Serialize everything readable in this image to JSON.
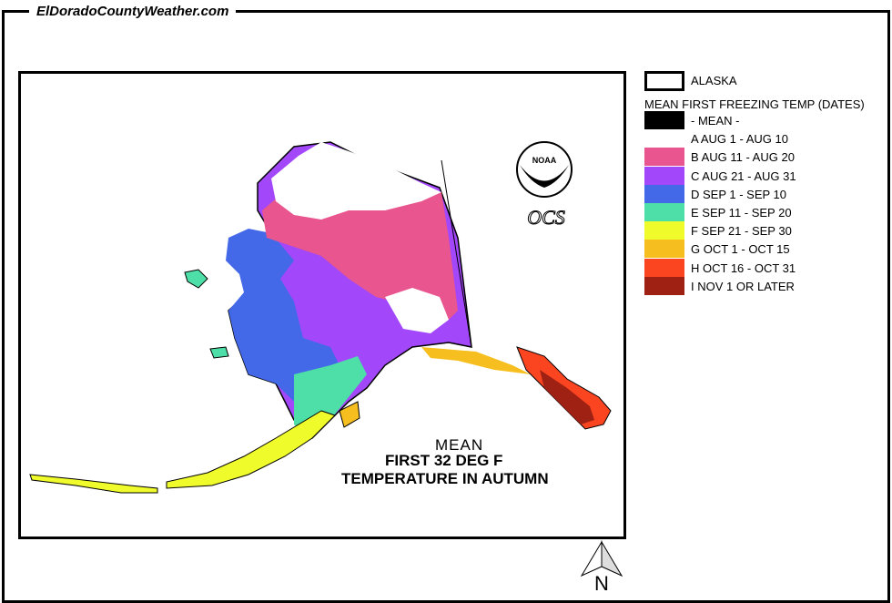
{
  "site_title": "ElDoradoCountyWeather.com",
  "legend": {
    "boundary_label": "ALASKA",
    "title": "MEAN FIRST FREEZING TEMP (DATES)",
    "items": [
      {
        "label": "- MEAN -",
        "color": "#000000"
      },
      {
        "label": "A AUG 1 - AUG 10",
        "color": "#ffffff"
      },
      {
        "label": "B AUG 11 - AUG 20",
        "color": "#e8558f"
      },
      {
        "label": "C AUG 21 - AUG 31",
        "color": "#a347fb"
      },
      {
        "label": "D SEP 1 - SEP 10",
        "color": "#4369e8"
      },
      {
        "label": "E SEP 11 - SEP 20",
        "color": "#4ddfa7"
      },
      {
        "label": "F SEP 21 - SEP 30",
        "color": "#f0fb2b"
      },
      {
        "label": "G OCT 1 - OCT 15",
        "color": "#f6bf1f"
      },
      {
        "label": "H OCT 16 - OCT 31",
        "color": "#fb4420"
      },
      {
        "label": "I NOV 1 OR LATER",
        "color": "#9f2113"
      }
    ]
  },
  "map": {
    "caption_line1": "MEAN",
    "caption_line2": "FIRST 32 DEG F",
    "caption_line3": "TEMPERATURE IN AUTUMN",
    "logo_text": "NOAA",
    "logo_subtext": "OCS",
    "north_label": "N"
  }
}
